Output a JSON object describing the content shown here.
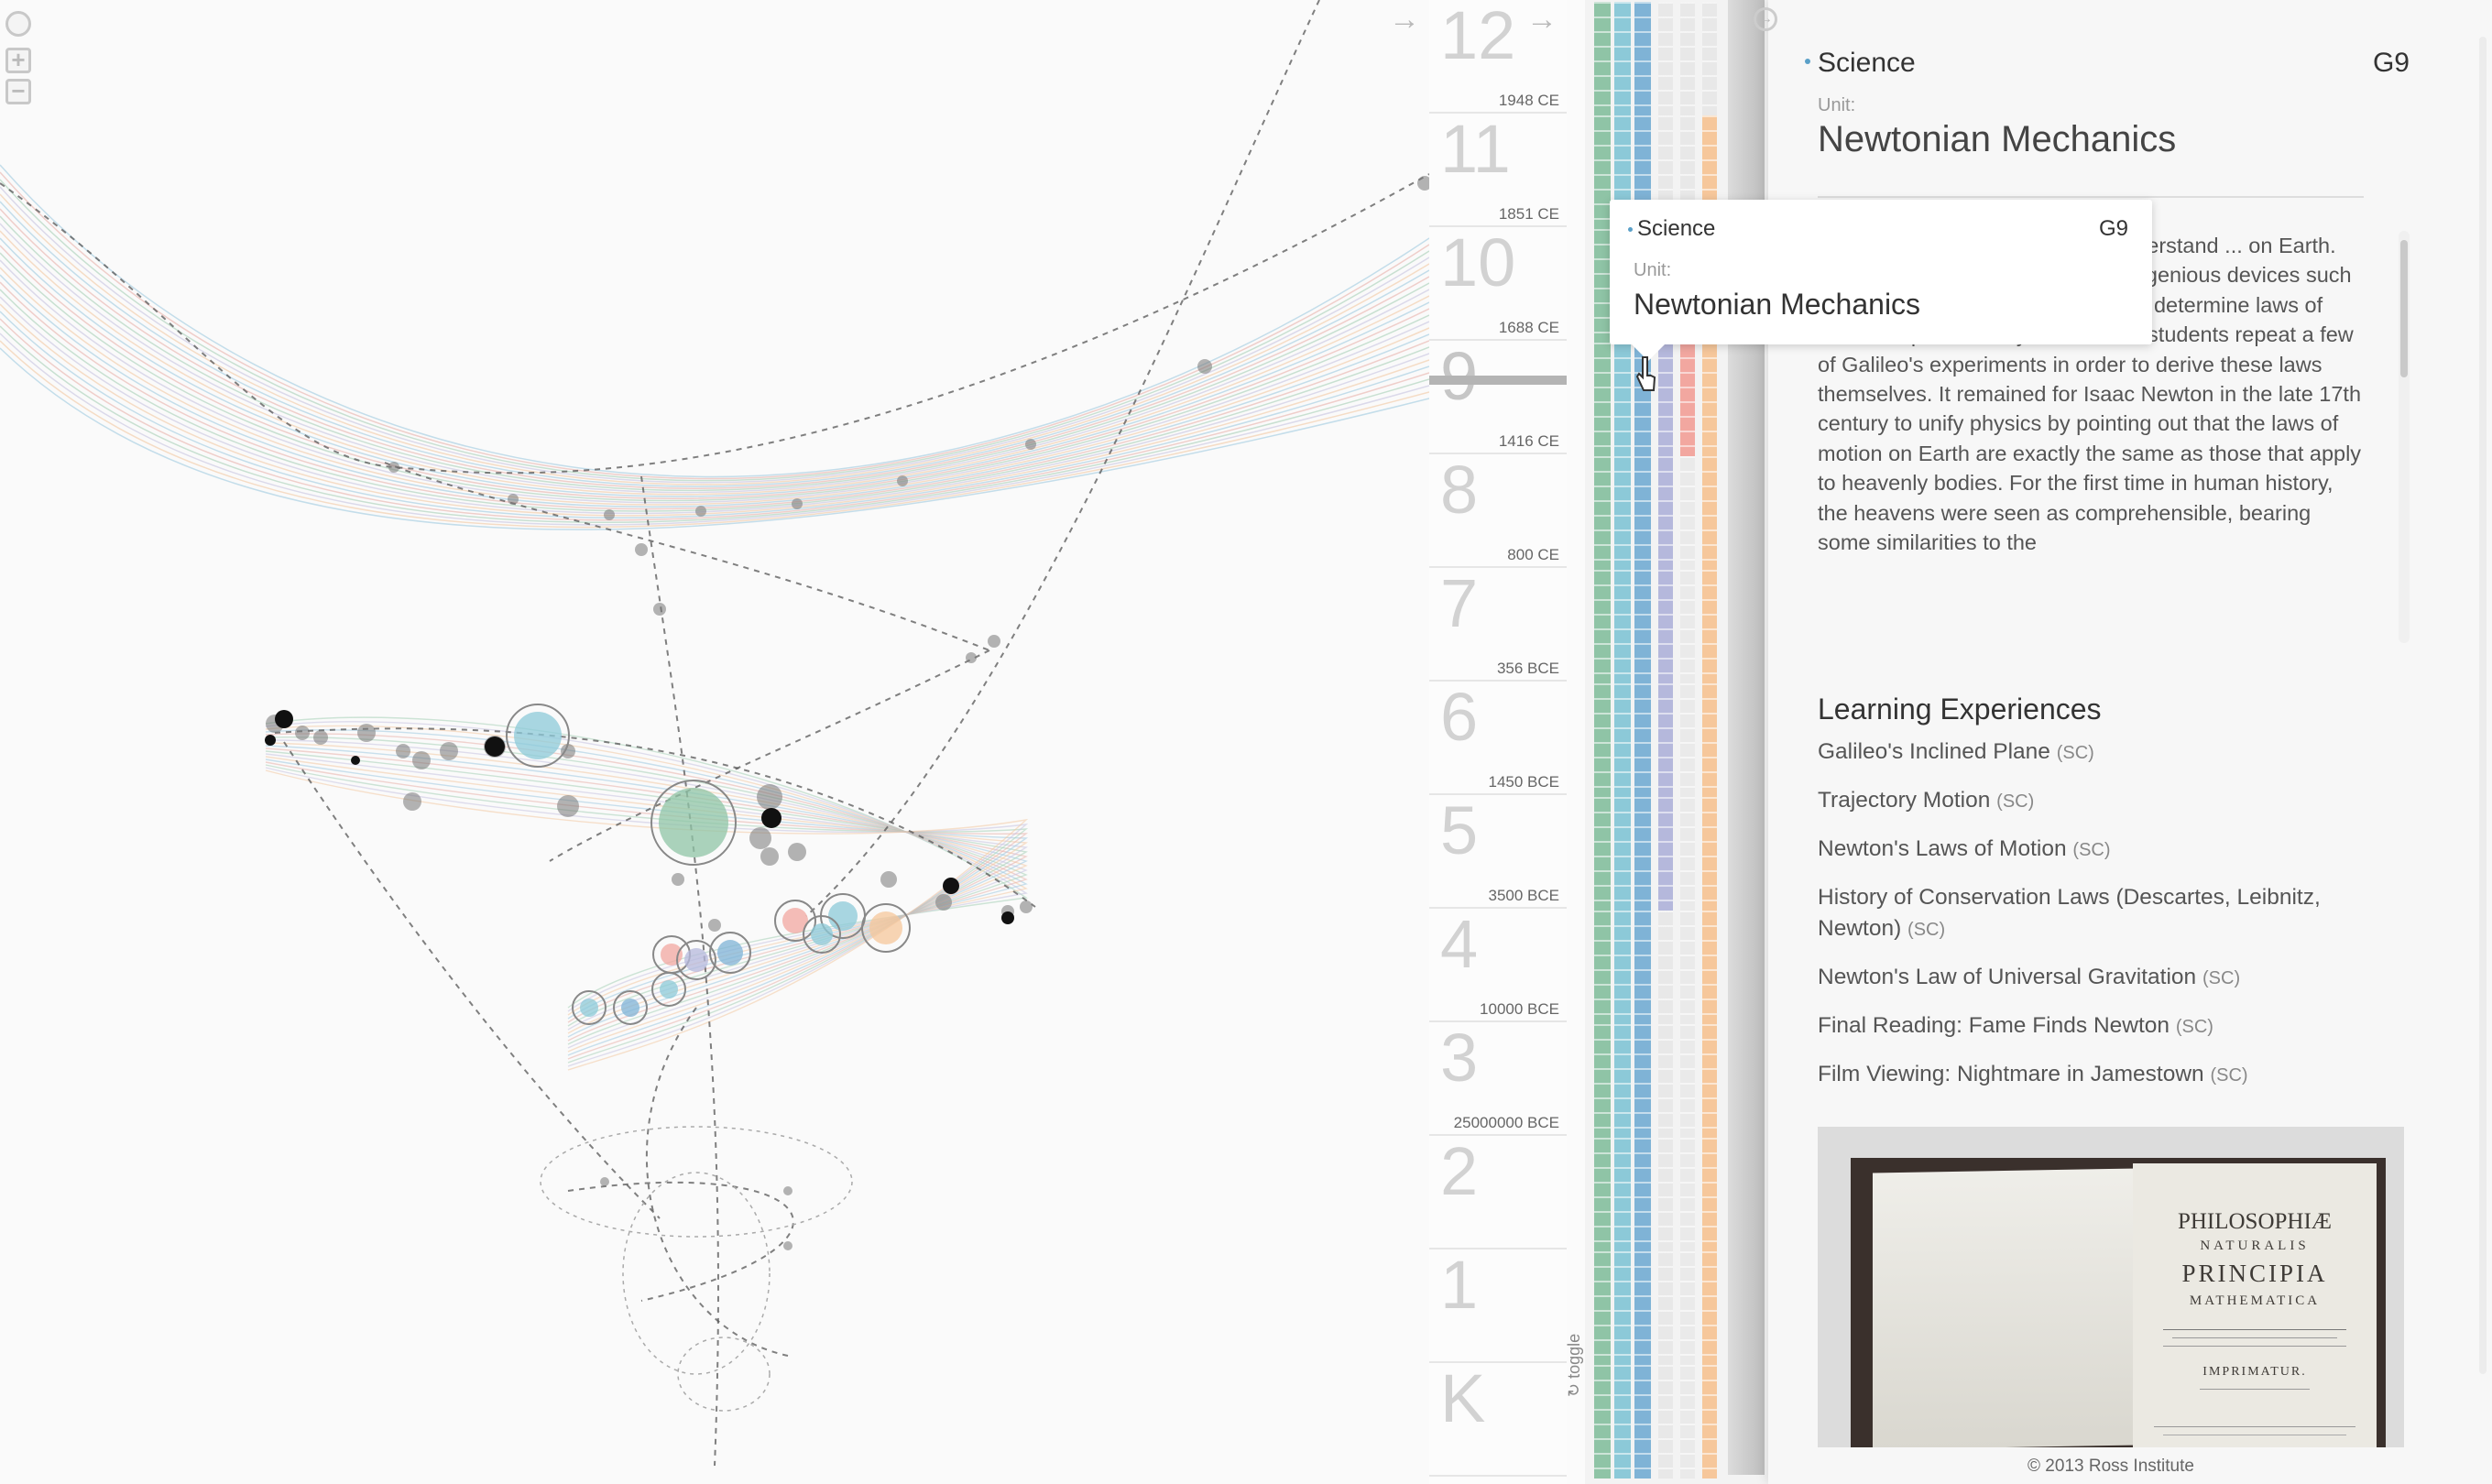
{
  "controls": {
    "zoom_in": "+",
    "zoom_out": "−",
    "collapse_arrow": "→",
    "panel_arrow": "→"
  },
  "grades": [
    {
      "label": "12",
      "year": "1948 CE"
    },
    {
      "label": "11",
      "year": "1851 CE"
    },
    {
      "label": "10",
      "year": "1688 CE"
    },
    {
      "label": "9",
      "year": "1416 CE"
    },
    {
      "label": "8",
      "year": "800 CE"
    },
    {
      "label": "7",
      "year": "356 BCE"
    },
    {
      "label": "6",
      "year": "1450 BCE"
    },
    {
      "label": "5",
      "year": "3500 BCE"
    },
    {
      "label": "4",
      "year": "10000 BCE"
    },
    {
      "label": "3",
      "year": "25000000 BCE"
    },
    {
      "label": "2",
      "year": ""
    },
    {
      "label": "1",
      "year": ""
    },
    {
      "label": "K",
      "year": ""
    }
  ],
  "toggle_label": "toggle",
  "subject_colors": [
    "#8fc4a6",
    "#8cc9d8",
    "#7fb3d6",
    "#b5b8dc",
    "#f2a7a0",
    "#f6c79b"
  ],
  "panel": {
    "subject": "Science",
    "grade": "G9",
    "unit_label": "Unit:",
    "unit_title": "Newtonian Mechanics",
    "description": "...f the universe was ...egan to understand ... on Earth. The ...rs was Galileo who, using ingenious devices such as music to mark time, was able to determine laws of motion experimentally. In this unit, students repeat a few of Galileo's experiments in order to derive these laws themselves. It remained for Isaac Newton in the late 17th century to unify physics by pointing out that the laws of motion on Earth are exactly the same as those that apply to heavenly bodies. For the first time in human history, the heavens were seen as comprehensible, bearing some similarities to the",
    "learning_heading": "Learning Experiences",
    "learning_experiences": [
      {
        "title": "Galileo's Inclined Plane",
        "tag": "(SC)"
      },
      {
        "title": "Trajectory Motion",
        "tag": "(SC)"
      },
      {
        "title": "Newton's Laws of Motion",
        "tag": "(SC)"
      },
      {
        "title": "History of Conservation Laws (Descartes, Leibnitz, Newton)",
        "tag": "(SC)"
      },
      {
        "title": "Newton's Law of Universal Gravitation",
        "tag": "(SC)"
      },
      {
        "title": "Final Reading: Fame Finds Newton",
        "tag": "(SC)"
      },
      {
        "title": "Film Viewing: Nightmare in Jamestown",
        "tag": "(SC)"
      }
    ],
    "book": {
      "line1": "PHILOSOPHIÆ",
      "line2": "NATURALIS",
      "line3": "PRINCIPIA",
      "line4": "MATHEMATICA",
      "line5": "IMPRIMATUR."
    },
    "copyright": "© 2013 Ross Institute"
  },
  "tooltip": {
    "subject": "Science",
    "grade": "G9",
    "unit_label": "Unit:",
    "unit_title": "Newtonian Mechanics"
  }
}
